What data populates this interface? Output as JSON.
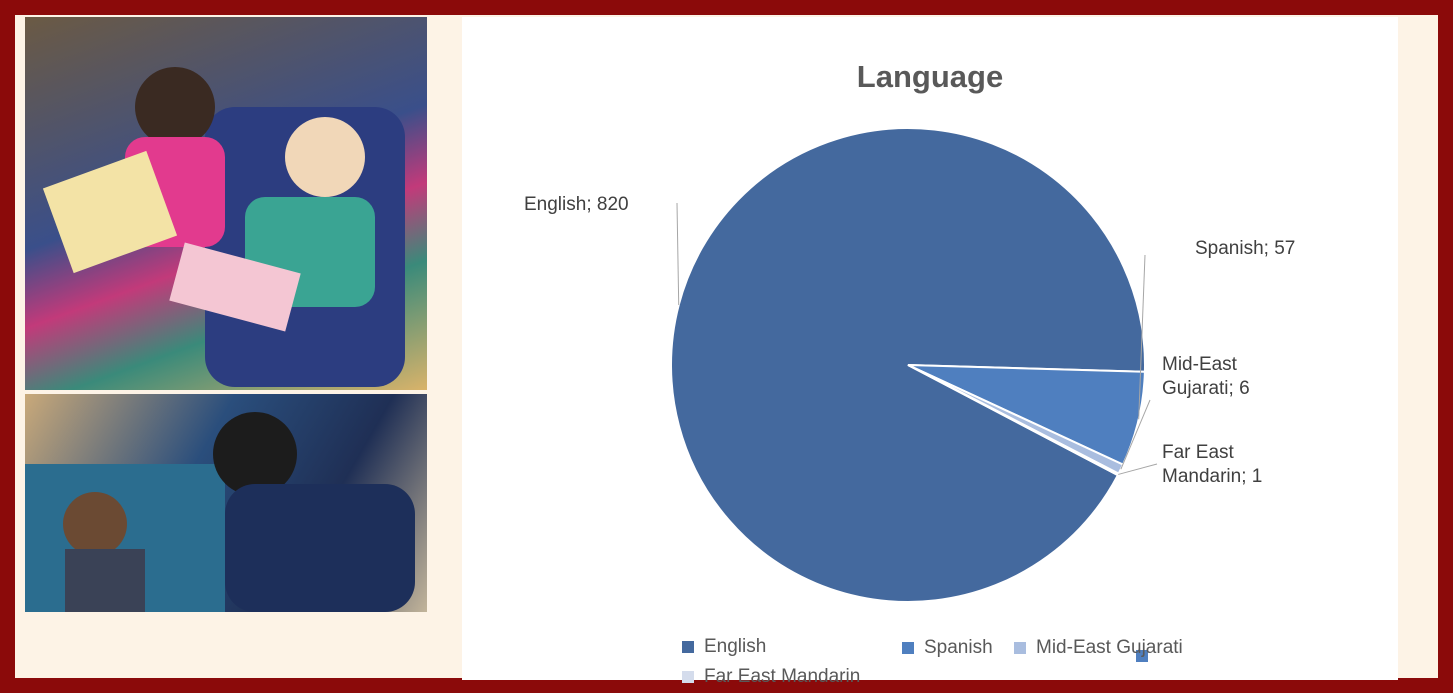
{
  "chart_data": {
    "type": "pie",
    "title": "Language",
    "categories": [
      "English",
      "Spanish",
      "Mid-East Gujarati",
      "Far East Mandarin"
    ],
    "values": [
      820,
      57,
      6,
      1
    ],
    "value_labels": [
      "English; 820",
      "Spanish; 57",
      "Mid-East Gujarati; 6",
      "Far East Mandarin; 1"
    ],
    "colors": [
      "#44699e",
      "#4f7fbf",
      "#a9bddf",
      "#d4dcec"
    ]
  }
}
